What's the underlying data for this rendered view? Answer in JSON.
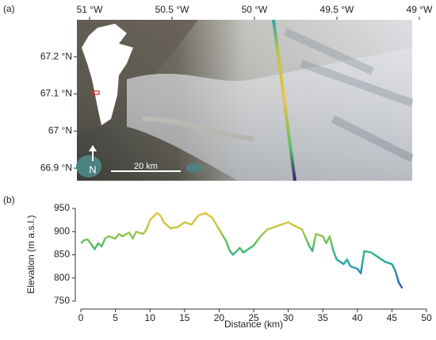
{
  "chart_data": [
    {
      "type": "map",
      "panel_label": "(a)",
      "xlim": [
        -51.077,
        -49.043
      ],
      "ylim": [
        66.866,
        67.3
      ],
      "xticks": [
        {
          "value": -51,
          "label": "51 °W"
        },
        {
          "value": -50.5,
          "label": "50.5 °W"
        },
        {
          "value": -50,
          "label": "50 °W"
        },
        {
          "value": -49.5,
          "label": "49.5 °W"
        },
        {
          "value": -49,
          "label": "49 °W"
        }
      ],
      "yticks": [
        {
          "value": 67.2,
          "label": "67.2 °N"
        },
        {
          "value": 67.1,
          "label": "67.1 °N"
        },
        {
          "value": 67,
          "label": "67 °N"
        },
        {
          "value": 66.9,
          "label": "66.9 °N"
        }
      ],
      "scale_bar": "20 km",
      "north": "N"
    },
    {
      "type": "line",
      "panel_label": "(b)",
      "x_label": "Distance (km)",
      "y_label": "Elevation (m a.s.l.)",
      "x": [
        0,
        0.5,
        1,
        1.5,
        2,
        2.5,
        3,
        3.5,
        4,
        5,
        5.5,
        6,
        7,
        7.5,
        8,
        9,
        9.5,
        10,
        11,
        11.5,
        12,
        13,
        14,
        15,
        16,
        17,
        18,
        19,
        20,
        21,
        21.5,
        22,
        23,
        23.5,
        24,
        25,
        26,
        27,
        28,
        29,
        30,
        31,
        32,
        33,
        33.5,
        34,
        35,
        35.5,
        36,
        36.5,
        37,
        38,
        38.5,
        39,
        40,
        40.5,
        41,
        42,
        43,
        44,
        45,
        45.5,
        46,
        46.5
      ],
      "values": [
        875,
        882,
        883,
        873,
        862,
        875,
        868,
        885,
        890,
        885,
        895,
        890,
        898,
        885,
        900,
        895,
        905,
        925,
        940,
        935,
        920,
        907,
        910,
        920,
        915,
        935,
        940,
        930,
        905,
        880,
        860,
        850,
        865,
        855,
        860,
        870,
        890,
        905,
        910,
        915,
        920,
        912,
        905,
        870,
        858,
        895,
        890,
        875,
        890,
        860,
        840,
        830,
        840,
        825,
        820,
        810,
        858,
        855,
        845,
        835,
        830,
        815,
        790,
        778
      ],
      "xlim": [
        0,
        50
      ],
      "ylim": [
        750,
        950
      ],
      "xticks": [
        0,
        5,
        10,
        15,
        20,
        25,
        30,
        35,
        40,
        45,
        50
      ],
      "yticks": [
        750,
        800,
        850,
        900,
        950
      ],
      "color_scale": [
        "#3d1f7d",
        "#2f6fb8",
        "#2aa8a8",
        "#52bf6a",
        "#c8c940",
        "#f0c24a"
      ]
    }
  ]
}
